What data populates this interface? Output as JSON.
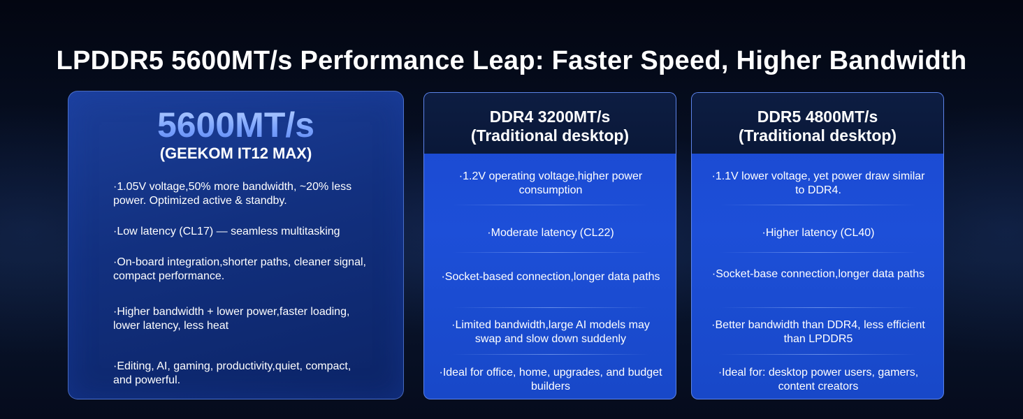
{
  "headline": "LPDDR5 5600MT/s Performance Leap: Faster Speed, Higher Bandwidth",
  "main_card": {
    "speed": "5600MT/s",
    "product": "(GEEKOM IT12 MAX)",
    "items": [
      "·1.05V voltage,50% more bandwidth, ~20% less power. Optimized active & standby.",
      "·Low latency (CL17) — seamless multitasking",
      "·On-board integration,shorter paths, cleaner signal, compact performance.",
      "·Higher bandwidth + lower power,faster loading, lower latency, less heat",
      "·Editing, AI, gaming, productivity,quiet, compact, and powerful."
    ]
  },
  "ddr4_card": {
    "title_line1": "DDR4 3200MT/s",
    "title_line2": "(Traditional desktop)",
    "items": [
      "·1.2V operating voltage,higher power consumption",
      "·Moderate latency (CL22)",
      "·Socket-based connection,longer data paths",
      "·Limited bandwidth,large AI models may swap and slow down suddenly",
      "·Ideal for office, home, upgrades, and budget builders"
    ]
  },
  "ddr5_card": {
    "title_line1": "DDR5 4800MT/s",
    "title_line2": "(Traditional desktop)",
    "items": [
      "·1.1V lower voltage, yet power draw similar to DDR4.",
      "·Higher latency (CL40)",
      "·Socket-base connection,longer data paths",
      "·Better bandwidth than DDR4, less efficient than LPDDR5",
      "·Ideal for: desktop power users, gamers, content creators"
    ]
  }
}
